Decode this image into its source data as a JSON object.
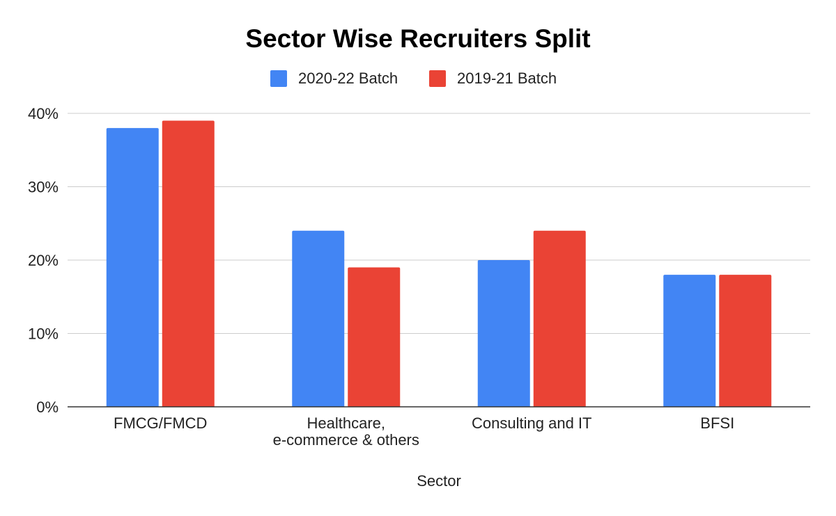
{
  "chart_data": {
    "type": "bar",
    "title": "Sector Wise Recruiters Split",
    "xlabel": "Sector",
    "ylabel": "",
    "ylim": [
      0,
      40
    ],
    "yticks": [
      "0%",
      "10%",
      "20%",
      "30%",
      "40%"
    ],
    "ytick_values": [
      0,
      10,
      20,
      30,
      40
    ],
    "grid": true,
    "legend_position": "top",
    "categories": [
      [
        "FMCG/FMCD"
      ],
      [
        "Healthcare,",
        "e-commerce & others"
      ],
      [
        "Consulting and IT"
      ],
      [
        "BFSI"
      ]
    ],
    "series": [
      {
        "name": "2020-22 Batch",
        "color": "#4285f4",
        "values": [
          38,
          24,
          20,
          18
        ]
      },
      {
        "name": "2019-21 Batch",
        "color": "#ea4335",
        "values": [
          39,
          19,
          24,
          18
        ]
      }
    ]
  }
}
